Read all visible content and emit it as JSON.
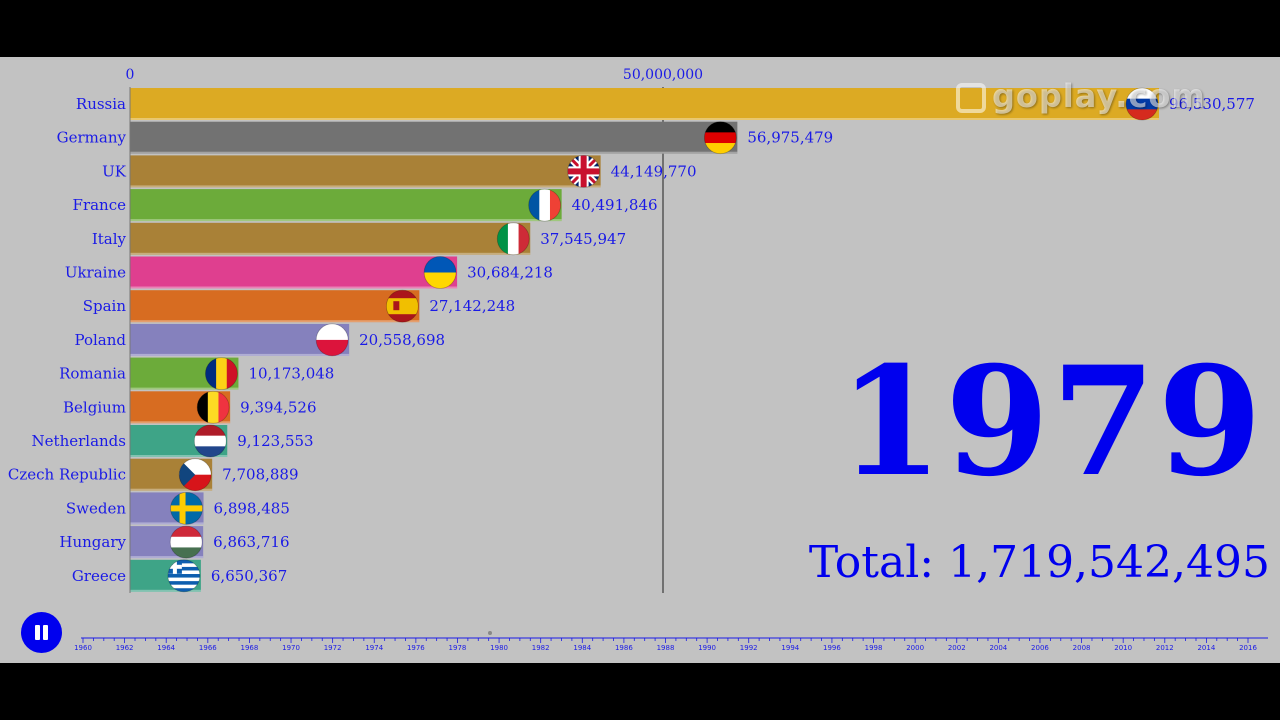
{
  "chart_data": {
    "type": "bar",
    "orientation": "horizontal",
    "x_ticks": [
      "0",
      "50,000,000"
    ],
    "x_tick_values": [
      0,
      50000000
    ],
    "categories": [
      "Russia",
      "Germany",
      "UK",
      "France",
      "Italy",
      "Ukraine",
      "Spain",
      "Poland",
      "Romania",
      "Belgium",
      "Netherlands",
      "Czech Republic",
      "Sweden",
      "Hungary",
      "Greece"
    ],
    "values": [
      96530577,
      56975479,
      44149770,
      40491846,
      37545947,
      30684218,
      27142248,
      20558698,
      10173048,
      9394526,
      9123553,
      7708889,
      6898485,
      6863716,
      6650367
    ],
    "value_labels": [
      "96,530,577",
      "56,975,479",
      "44,149,770",
      "40,491,846",
      "37,545,947",
      "30,684,218",
      "27,142,248",
      "20,558,698",
      "10,173,048",
      "9,394,526",
      "9,123,553",
      "7,708,889",
      "6,898,485",
      "6,863,716",
      "6,650,367"
    ],
    "bar_colors": [
      "#dcaa23",
      "#727272",
      "#a98137",
      "#6cab3a",
      "#a98137",
      "#df3f8f",
      "#d76c21",
      "#8581bd",
      "#6cab3a",
      "#d76c21",
      "#3ea487",
      "#a98137",
      "#8581bd",
      "#8581bd",
      "#3ea487"
    ],
    "flag_icons": [
      "russia-flag-icon",
      "germany-flag-icon",
      "uk-flag-icon",
      "france-flag-icon",
      "italy-flag-icon",
      "ukraine-flag-icon",
      "spain-flag-icon",
      "poland-flag-icon",
      "romania-flag-icon",
      "belgium-flag-icon",
      "netherlands-flag-icon",
      "czech-flag-icon",
      "sweden-flag-icon",
      "hungary-flag-icon",
      "greece-flag-icon"
    ],
    "xlim": [
      0,
      100000000
    ],
    "year": "1979",
    "total": "Total: 1,719,542,495",
    "timeline_years": [
      "1960",
      "1962",
      "1964",
      "1966",
      "1968",
      "1970",
      "1972",
      "1974",
      "1976",
      "1978",
      "1980",
      "1982",
      "1984",
      "1986",
      "1988",
      "1990",
      "1992",
      "1994",
      "1996",
      "1998",
      "2000",
      "2002",
      "2004",
      "2006",
      "2008",
      "2010",
      "2012",
      "2014",
      "2016"
    ]
  },
  "watermark": "goplay.com",
  "colors": {
    "accent": "#0000ee",
    "label": "#1a1ae6",
    "background": "#c2c2c2"
  },
  "controls": {
    "pause_icon": "pause-icon"
  }
}
